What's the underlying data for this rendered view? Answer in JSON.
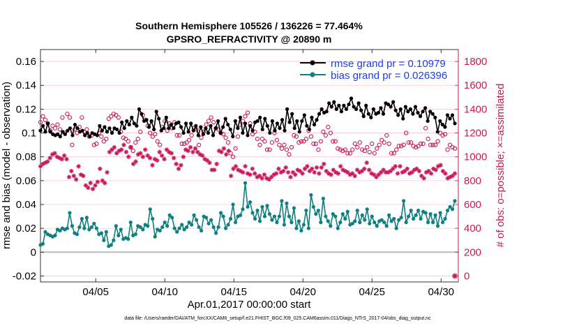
{
  "chart_data": {
    "type": "line",
    "title_line1": "Southern Hemisphere 105526 / 136226 = 77.464%",
    "title_line2": "GPSRO_REFRACTIVITY @ 20890 m",
    "xlabel": "Apr.01,2017 00:00:00 start",
    "ylabel": "rmse and bias (model - observation)",
    "ylabel_right": "# of obs: o=possible; ×=assimilated",
    "footer": "data file: /Users/raeder/DAI/ATM_forcXX/CAM6_setup/f.e21.FHIST_BGC.f09_025.CAM6assim.011/Diags_NTrS_2017-04/obs_diag_output.nc",
    "xlim": [
      1.0,
      31.25
    ],
    "ylim": [
      -0.025,
      0.17
    ],
    "ylim_right": [
      -50,
      1900
    ],
    "x_ticks": [
      5,
      10,
      15,
      20,
      25,
      30
    ],
    "x_tick_labels": [
      "04/05",
      "04/10",
      "04/15",
      "04/20",
      "04/25",
      "04/30"
    ],
    "y_ticks": [
      -0.02,
      0,
      0.02,
      0.04,
      0.06,
      0.08,
      0.1,
      0.12,
      0.14,
      0.16
    ],
    "y_tick_labels": [
      "-0.02",
      "0",
      "0.02",
      "0.04",
      "0.06",
      "0.08",
      "0.1",
      "0.12",
      "0.14",
      "0.16"
    ],
    "y_right_ticks": [
      0,
      200,
      400,
      600,
      800,
      1000,
      1200,
      1400,
      1600,
      1800
    ],
    "y_right_tick_labels": [
      "0",
      "200",
      "400",
      "600",
      "800",
      "1000",
      "1200",
      "1400",
      "1600",
      "1800"
    ],
    "zero_line": 0,
    "legend": [
      {
        "name": "rmse grand pr = 0.10979",
        "color": "#000000"
      },
      {
        "name": "bias grand pr = 0.026396",
        "color": "#0f7f80"
      }
    ],
    "series": [
      {
        "name": "rmse",
        "color": "#000000",
        "marker": "dot",
        "values": [
          0.102,
          0.106,
          0.101,
          0.108,
          0.101,
          0.099,
          0.098,
          0.099,
          0.097,
          0.101,
          0.099,
          0.102,
          0.104,
          0.098,
          0.107,
          0.104,
          0.101,
          0.102,
          0.098,
          0.1,
          0.097,
          0.1,
          0.099,
          0.098,
          0.106,
          0.102,
          0.105,
          0.101,
          0.104,
          0.1,
          0.104,
          0.103,
          0.1,
          0.109,
          0.104,
          0.11,
          0.107,
          0.113,
          0.108,
          0.106,
          0.12,
          0.116,
          0.11,
          0.111,
          0.105,
          0.11,
          0.103,
          0.118,
          0.112,
          0.102,
          0.104,
          0.113,
          0.104,
          0.107,
          0.104,
          0.108,
          0.109,
          0.105,
          0.1,
          0.108,
          0.101,
          0.108,
          0.102,
          0.106,
          0.098,
          0.105,
          0.099,
          0.104,
          0.1,
          0.106,
          0.098,
          0.104,
          0.11,
          0.1,
          0.105,
          0.112,
          0.107,
          0.103,
          0.097,
          0.11,
          0.104,
          0.113,
          0.1,
          0.108,
          0.098,
          0.106,
          0.102,
          0.109,
          0.11,
          0.113,
          0.103,
          0.112,
          0.106,
          0.1,
          0.11,
          0.102,
          0.108,
          0.104,
          0.111,
          0.102,
          0.12,
          0.109,
          0.116,
          0.104,
          0.11,
          0.101,
          0.11,
          0.115,
          0.106,
          0.103,
          0.113,
          0.107,
          0.111,
          0.116,
          0.12,
          0.117,
          0.118,
          0.125,
          0.122,
          0.126,
          0.12,
          0.123,
          0.118,
          0.123,
          0.12,
          0.124,
          0.129,
          0.122,
          0.12,
          0.125,
          0.119,
          0.114,
          0.123,
          0.116,
          0.113,
          0.12,
          0.116,
          0.117,
          0.121,
          0.116,
          0.125,
          0.124,
          0.122,
          0.126,
          0.119,
          0.115,
          0.12,
          0.112,
          0.122,
          0.118,
          0.12,
          0.116,
          0.122,
          0.117,
          0.114,
          0.118,
          0.121,
          0.11,
          0.118,
          0.116,
          0.113,
          0.101,
          0.11,
          0.107,
          0.105,
          0.115,
          0.112,
          0.115,
          0.108
        ]
      },
      {
        "name": "bias",
        "color": "#0f7f80",
        "marker": "dot",
        "values": [
          0.006,
          0.007,
          0.017,
          0.015,
          0.014,
          0.013,
          0.014,
          0.019,
          0.018,
          0.02,
          0.019,
          0.02,
          0.033,
          0.022,
          0.016,
          0.015,
          0.021,
          0.028,
          0.02,
          0.029,
          0.019,
          0.021,
          0.024,
          0.02,
          0.015,
          0.016,
          0.01,
          0.017,
          0.005,
          0.006,
          0.01,
          0.022,
          0.014,
          0.019,
          0.011,
          0.012,
          0.011,
          0.025,
          0.014,
          0.015,
          0.022,
          0.021,
          0.019,
          0.023,
          0.022,
          0.036,
          0.028,
          0.013,
          0.019,
          0.018,
          0.021,
          0.025,
          0.022,
          0.031,
          0.029,
          0.02,
          0.017,
          0.02,
          0.023,
          0.019,
          0.021,
          0.025,
          0.023,
          0.031,
          0.027,
          0.021,
          0.018,
          0.03,
          0.029,
          0.024,
          0.027,
          0.021,
          0.016,
          0.021,
          0.033,
          0.03,
          0.02,
          0.023,
          0.028,
          0.04,
          0.025,
          0.03,
          0.031,
          0.036,
          0.058,
          0.038,
          0.042,
          0.033,
          0.028,
          0.035,
          0.026,
          0.038,
          0.03,
          0.039,
          0.032,
          0.027,
          0.03,
          0.025,
          0.03,
          0.043,
          0.023,
          0.041,
          0.03,
          0.025,
          0.037,
          0.02,
          0.026,
          0.018,
          0.023,
          0.035,
          0.02,
          0.048,
          0.038,
          0.032,
          0.035,
          0.025,
          0.045,
          0.03,
          0.026,
          0.022,
          0.032,
          0.03,
          0.02,
          0.025,
          0.032,
          0.028,
          0.034,
          0.023,
          0.024,
          0.026,
          0.035,
          0.025,
          0.031,
          0.027,
          0.036,
          0.024,
          0.03,
          0.025,
          0.022,
          0.026,
          0.027,
          0.025,
          0.022,
          0.031,
          0.026,
          0.028,
          0.02,
          0.027,
          0.029,
          0.043,
          0.025,
          0.03,
          0.035,
          0.028,
          0.031,
          0.035,
          0.028,
          0.034,
          0.033,
          0.025,
          0.032,
          0.025,
          0.031,
          0.022,
          0.033,
          0.025,
          0.028,
          0.035,
          0.038,
          0.036,
          0.043
        ]
      },
      {
        "name": "possible",
        "color": "#c8185a",
        "marker": "circle",
        "axis": "right",
        "values": [
          1290,
          1340,
          1310,
          1280,
          1220,
          1260,
          1240,
          1270,
          1230,
          1330,
          1200,
          1360,
          1330,
          1100,
          1230,
          1200,
          1250,
          1330,
          1210,
          1230,
          1170,
          1180,
          1100,
          1110,
          1200,
          1170,
          1130,
          1150,
          1320,
          1340,
          1360,
          1350,
          1330,
          1210,
          1160,
          1150,
          1130,
          1080,
          1050,
          1120,
          1150,
          1210,
          1350,
          1310,
          1260,
          1200,
          1170,
          1190,
          1130,
          1100,
          1250,
          1300,
          1220,
          1280,
          1240,
          1290,
          1180,
          1180,
          1110,
          1110,
          1120,
          1140,
          1180,
          1240,
          1230,
          1100,
          1160,
          1210,
          1270,
          1300,
          1330,
          1290,
          1240,
          1230,
          1200,
          1190,
          1160,
          1120,
          1030,
          1000,
          1070,
          1170,
          1270,
          1300,
          1340,
          1370,
          1280,
          1190,
          1210,
          1150,
          1100,
          1150,
          1130,
          1060,
          1060,
          1120,
          1200,
          1140,
          1100,
          1070,
          1100,
          1060,
          1020,
          1080,
          1180,
          1170,
          1120,
          1130,
          1130,
          1150,
          1220,
          1170,
          1110,
          1110,
          1060,
          1130,
          1210,
          1180,
          1250,
          1200,
          1130,
          1130,
          1070,
          1060,
          1050,
          1060,
          1030,
          1030,
          1060,
          1110,
          1080,
          1120,
          1060,
          1050,
          1080,
          1040,
          1110,
          1030,
          1070,
          1100,
          1140,
          1120,
          1180,
          1110,
          1030,
          1030,
          1060,
          1090,
          1090,
          1100,
          1200,
          1120,
          1120,
          1090,
          1080,
          1090,
          1110,
          1110,
          1240,
          1150,
          1100,
          1100,
          1100,
          1130,
          1200,
          1180,
          1190,
          1060,
          1100,
          1080,
          1070
        ]
      },
      {
        "name": "assimilated",
        "color": "#c8185a",
        "marker": "star",
        "axis": "right",
        "values": [
          920,
          940,
          950,
          960,
          990,
          1020,
          1030,
          1000,
          990,
          980,
          1010,
          980,
          830,
          880,
          840,
          810,
          920,
          850,
          840,
          760,
          740,
          780,
          730,
          760,
          790,
          900,
          800,
          780,
          870,
          1040,
          1060,
          1080,
          1030,
          1050,
          1060,
          1100,
          1040,
          1000,
          1080,
          940,
          960,
          1020,
          1030,
          1000,
          1060,
          1010,
          990,
          930,
          980,
          970,
          1040,
          1010,
          980,
          1060,
          1040,
          1030,
          990,
          940,
          900,
          930,
          1000,
          1060,
          1050,
          1080,
          1040,
          1070,
          1040,
          1020,
          1010,
          980,
          970,
          950,
          890,
          890,
          940,
          1050,
          1040,
          1070,
          1020,
          1050,
          840,
          900,
          920,
          890,
          880,
          870,
          920,
          860,
          850,
          900,
          860,
          830,
          840,
          820,
          850,
          820,
          810,
          830,
          850,
          860,
          900,
          870,
          880,
          910,
          870,
          830,
          870,
          850,
          890,
          880,
          860,
          900,
          920,
          880,
          900,
          870,
          910,
          860,
          910,
          940,
          880,
          860,
          850,
          890,
          870,
          860,
          920,
          890,
          880,
          870,
          850,
          860,
          840,
          890,
          870,
          880,
          900,
          950,
          890,
          860,
          850,
          830,
          850,
          870,
          890,
          870,
          870,
          880,
          900,
          920,
          860,
          920,
          870,
          880,
          900,
          860,
          870,
          890,
          900,
          880,
          840,
          820,
          870,
          880,
          860,
          900,
          890,
          920,
          930,
          880,
          860,
          820,
          830,
          840,
          860
        ]
      }
    ],
    "extra_point_right": {
      "x": 31.0,
      "y": 0,
      "marker": "star",
      "color": "#c8185a"
    }
  }
}
